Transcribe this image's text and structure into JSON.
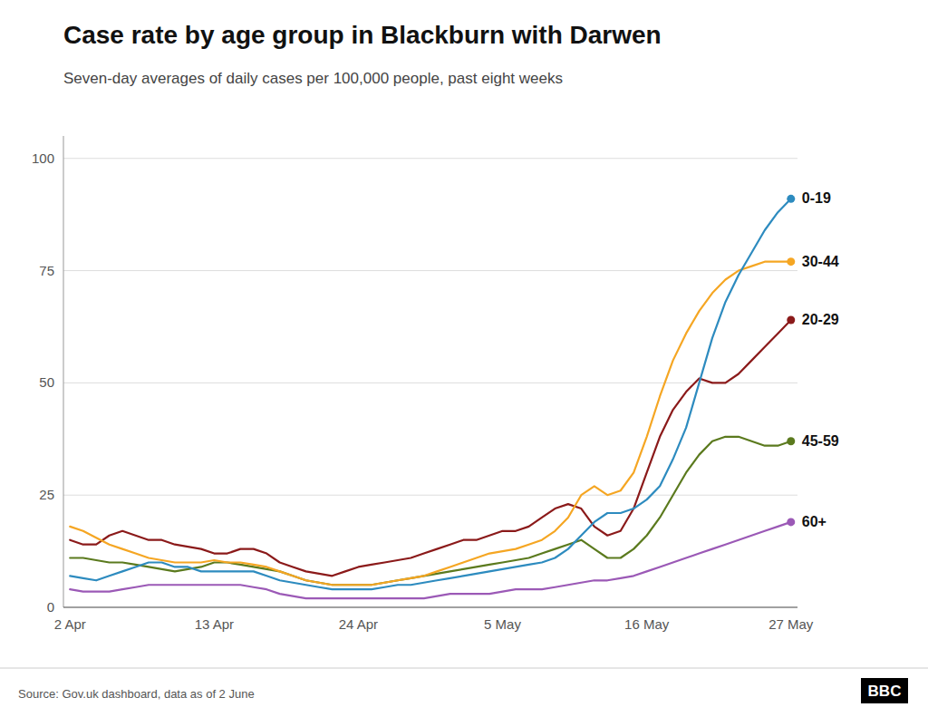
{
  "chart_data": {
    "type": "line",
    "title": "Case rate by age group in Blackburn with Darwen",
    "subtitle": "Seven-day averages of daily cases per 100,000 people, past eight weeks",
    "source": "Source: Gov.uk dashboard, data as of  2 June",
    "annotations": [
      "BBC"
    ],
    "categories": [
      "2 Apr",
      null,
      null,
      null,
      null,
      null,
      null,
      null,
      null,
      null,
      null,
      "13 Apr",
      null,
      null,
      null,
      null,
      null,
      null,
      null,
      null,
      null,
      null,
      "24 Apr",
      null,
      null,
      null,
      null,
      null,
      null,
      null,
      null,
      null,
      null,
      "5 May",
      null,
      null,
      null,
      null,
      null,
      null,
      null,
      null,
      null,
      null,
      "16 May",
      null,
      null,
      null,
      null,
      null,
      null,
      null,
      null,
      null,
      null,
      "27 May"
    ],
    "series": [
      {
        "name": "60+",
        "color": "#9b59b6",
        "values": [
          4,
          3.5,
          3.5,
          3.5,
          4,
          4.5,
          5,
          5,
          5,
          5,
          5,
          5,
          5,
          5,
          4.5,
          4,
          3,
          2.5,
          2,
          2,
          2,
          2,
          2,
          2,
          2,
          2,
          2,
          2,
          2.5,
          3,
          3,
          3,
          3,
          3.5,
          4,
          4,
          4,
          4.5,
          5,
          5.5,
          6,
          6,
          6.5,
          7,
          8,
          9,
          10,
          11,
          12,
          13,
          14,
          15,
          16,
          17,
          18,
          19
        ]
      },
      {
        "name": "45-59",
        "color": "#5b7a1e",
        "values": [
          11,
          11,
          10.5,
          10,
          10,
          9.5,
          9,
          8.5,
          8,
          8.5,
          9,
          10,
          10,
          9.5,
          9,
          8.5,
          8,
          7,
          6,
          5.5,
          5,
          5,
          5,
          5,
          5.5,
          6,
          6.5,
          7,
          7.5,
          8,
          8.5,
          9,
          9.5,
          10,
          10.5,
          11,
          12,
          13,
          14,
          15,
          13,
          11,
          11,
          13,
          16,
          20,
          25,
          30,
          34,
          37,
          38,
          38,
          37,
          36,
          36,
          37
        ]
      },
      {
        "name": "20-29",
        "color": "#8b1a1a",
        "values": [
          15,
          14,
          14,
          16,
          17,
          16,
          15,
          15,
          14,
          13.5,
          13,
          12,
          12,
          13,
          13,
          12,
          10,
          9,
          8,
          7.5,
          7,
          8,
          9,
          9.5,
          10,
          10.5,
          11,
          12,
          13,
          14,
          15,
          15,
          16,
          17,
          17,
          18,
          20,
          22,
          23,
          22,
          18,
          16,
          17,
          22,
          30,
          38,
          44,
          48,
          51,
          50,
          50,
          52,
          55,
          58,
          61,
          64
        ]
      },
      {
        "name": "30-44",
        "color": "#f5a623",
        "values": [
          18,
          17,
          15.5,
          14,
          13,
          12,
          11,
          10.5,
          10,
          10,
          10,
          10.5,
          10,
          10,
          9.5,
          9,
          8,
          7,
          6,
          5.5,
          5,
          5,
          5,
          5,
          5.5,
          6,
          6.5,
          7,
          8,
          9,
          10,
          11,
          12,
          12.5,
          13,
          14,
          15,
          17,
          20,
          25,
          27,
          25,
          26,
          30,
          38,
          47,
          55,
          61,
          66,
          70,
          73,
          75,
          76,
          77,
          77,
          77
        ]
      },
      {
        "name": "0-19",
        "color": "#2d8bbf",
        "values": [
          7,
          6.5,
          6,
          7,
          8,
          9,
          10,
          10,
          9,
          9,
          8,
          8,
          8,
          8,
          8,
          7,
          6,
          5.5,
          5,
          4.5,
          4,
          4,
          4,
          4,
          4.5,
          5,
          5,
          5.5,
          6,
          6.5,
          7,
          7.5,
          8,
          8.5,
          9,
          9.5,
          10,
          11,
          13,
          16,
          19,
          21,
          21,
          22,
          24,
          27,
          33,
          40,
          50,
          60,
          68,
          74,
          79,
          84,
          88,
          91
        ]
      }
    ],
    "ylim": [
      0,
      105
    ],
    "yticks": [
      0,
      25,
      50,
      75,
      100
    ],
    "grid": true
  }
}
